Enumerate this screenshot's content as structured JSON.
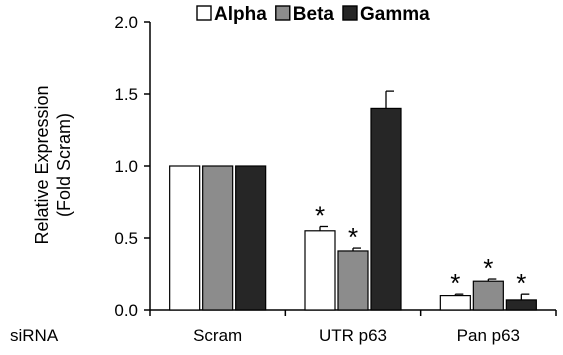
{
  "chart_data": {
    "type": "bar",
    "title": "",
    "categories_label": "siRNA",
    "categories": [
      "Scram",
      "UTR p63",
      "Pan p63"
    ],
    "ylabel_lines": [
      "Relative Expression",
      "(Fold Scram)"
    ],
    "ylim": [
      0,
      2.0
    ],
    "yticks": [
      "0.0",
      "0.5",
      "1.0",
      "1.5",
      "2.0"
    ],
    "grid": false,
    "legend_position": "top",
    "significance_marker": "*",
    "series": [
      {
        "name": "Alpha",
        "color": "#ffffff",
        "values": [
          1.0,
          0.55,
          0.1
        ],
        "errors": [
          0,
          0.03,
          0.01
        ],
        "significant": [
          false,
          true,
          true
        ]
      },
      {
        "name": "Beta",
        "color": "#8c8c8c",
        "values": [
          1.0,
          0.41,
          0.2
        ],
        "errors": [
          0,
          0.02,
          0.015
        ],
        "significant": [
          false,
          true,
          true
        ]
      },
      {
        "name": "Gamma",
        "color": "#262626",
        "values": [
          1.0,
          1.4,
          0.07
        ],
        "errors": [
          0,
          0.12,
          0.04
        ],
        "significant": [
          false,
          false,
          true
        ]
      }
    ]
  }
}
